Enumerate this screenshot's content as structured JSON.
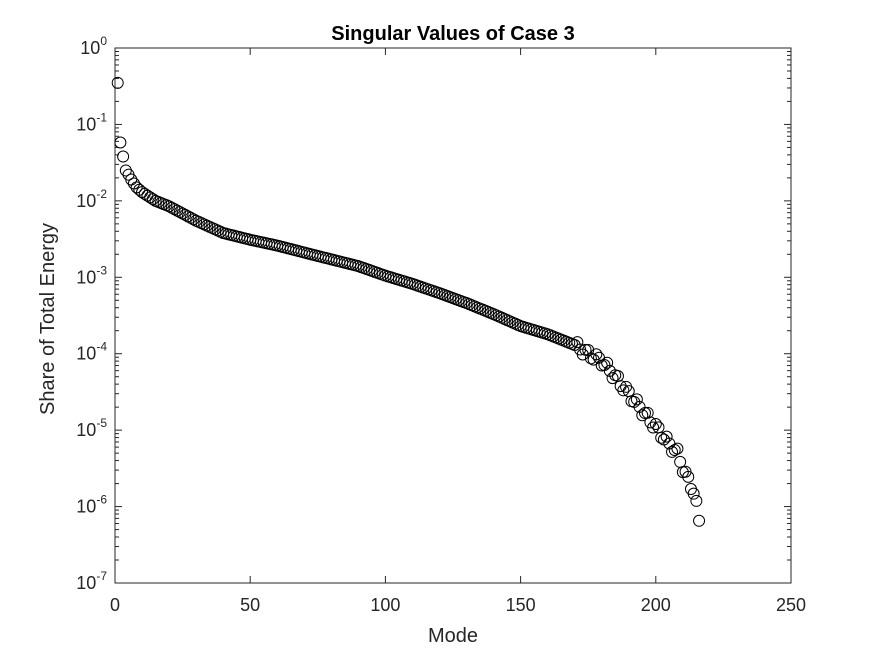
{
  "chart_data": {
    "type": "scatter",
    "title": "Singular Values of Case 3",
    "xlabel": "Mode",
    "ylabel": "Share of Total Energy",
    "xlim": [
      0,
      250
    ],
    "ylim": [
      1e-07,
      1
    ],
    "yscale": "log",
    "xticks": [
      0,
      50,
      100,
      150,
      200,
      250
    ],
    "yticks": [
      {
        "base": "10",
        "exp": "0",
        "value": 1
      },
      {
        "base": "10",
        "exp": "-1",
        "value": 0.1
      },
      {
        "base": "10",
        "exp": "-2",
        "value": 0.01
      },
      {
        "base": "10",
        "exp": "-3",
        "value": 0.001
      },
      {
        "base": "10",
        "exp": "-4",
        "value": 0.0001
      },
      {
        "base": "10",
        "exp": "-5",
        "value": 1e-05
      },
      {
        "base": "10",
        "exp": "-6",
        "value": 1e-06
      },
      {
        "base": "10",
        "exp": "-7",
        "value": 1e-07
      }
    ],
    "grid": false,
    "marker": "open-circle",
    "marker_color": "#000000",
    "anchors": {
      "x": [
        1,
        2,
        3,
        4,
        5,
        6,
        8,
        10,
        15,
        20,
        30,
        40,
        50,
        60,
        75,
        90,
        100,
        110,
        120,
        130,
        140,
        150,
        160,
        170,
        175,
        180,
        185,
        190,
        195,
        200,
        205,
        208,
        210,
        212,
        214,
        215,
        216
      ],
      "y": [
        0.35,
        0.058,
        0.038,
        0.025,
        0.022,
        0.019,
        0.015,
        0.013,
        0.01,
        0.0085,
        0.0055,
        0.0038,
        0.0031,
        0.0026,
        0.0019,
        0.0014,
        0.00105,
        0.00082,
        0.00062,
        0.00046,
        0.00033,
        0.00023,
        0.00018,
        0.00013,
        0.0001,
        8e-05,
        5e-05,
        3e-05,
        1.8e-05,
        1.1e-05,
        6.5e-06,
        5e-06,
        3.2e-06,
        2.2e-06,
        1.6e-06,
        1.05e-06,
        6.2e-07
      ]
    },
    "n_points": 216
  }
}
